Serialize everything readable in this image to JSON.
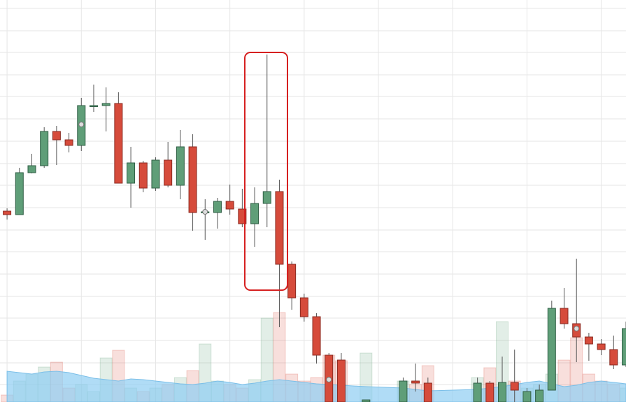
{
  "chart_data": {
    "type": "candlestick",
    "x": [
      0,
      1,
      2,
      3,
      4,
      5,
      6,
      7,
      8,
      9,
      10,
      11,
      12,
      13,
      14,
      15,
      16,
      17,
      18,
      19,
      20,
      21,
      22,
      23,
      24,
      25,
      26,
      27,
      29,
      32,
      33,
      34,
      38,
      39,
      40,
      41,
      42,
      43,
      44,
      45,
      46,
      47,
      48,
      49,
      50
    ],
    "open": [
      273,
      268,
      328,
      338,
      387,
      375,
      367,
      423,
      424,
      427,
      313,
      342,
      306,
      346,
      310,
      365,
      272,
      271,
      287,
      276,
      255,
      284,
      301,
      197,
      149,
      122,
      67,
      60,
      0,
      0,
      30,
      27,
      0,
      27,
      0,
      28,
      0,
      0,
      17,
      134,
      112,
      93,
      83,
      75,
      53
    ],
    "high": [
      277,
      335,
      355,
      393,
      395,
      385,
      435,
      454,
      450,
      443,
      365,
      345,
      350,
      372,
      389,
      383,
      290,
      292,
      311,
      305,
      307,
      497,
      318,
      201,
      155,
      127,
      70,
      70,
      3,
      35,
      55,
      35,
      35,
      30,
      65,
      75,
      20,
      25,
      145,
      163,
      205,
      99,
      90,
      95,
      115
    ],
    "low": [
      261,
      268,
      327,
      335,
      339,
      357,
      359,
      415,
      387,
      313,
      278,
      300,
      302,
      307,
      290,
      245,
      232,
      248,
      268,
      250,
      222,
      250,
      107,
      132,
      115,
      55,
      0,
      0,
      0,
      0,
      15,
      0,
      0,
      0,
      0,
      0,
      0,
      0,
      17,
      105,
      57,
      59,
      67,
      47,
      50
    ],
    "close": [
      268,
      328,
      338,
      387,
      375,
      367,
      424,
      424,
      427,
      313,
      342,
      306,
      346,
      310,
      365,
      271,
      272,
      287,
      276,
      255,
      284,
      301,
      197,
      149,
      122,
      67,
      0,
      0,
      3,
      30,
      27,
      0,
      27,
      0,
      28,
      17,
      15,
      17,
      134,
      112,
      93,
      83,
      75,
      53,
      105
    ],
    "volume": [
      10,
      30,
      40,
      50,
      57,
      20,
      25,
      15,
      63,
      74,
      20,
      15,
      20,
      25,
      35,
      45,
      83,
      30,
      25,
      20,
      32,
      120,
      128,
      40,
      30,
      35,
      67,
      59,
      70,
      30,
      25,
      52,
      35,
      49,
      115,
      30,
      20,
      25,
      40,
      60,
      92,
      40,
      30,
      25,
      20
    ],
    "area": [
      44,
      42,
      40,
      43,
      44,
      42,
      38,
      34,
      32,
      30,
      33,
      32,
      30,
      28,
      26,
      25,
      27,
      30,
      28,
      25,
      27,
      30,
      32,
      30,
      28,
      26,
      25,
      24,
      22,
      20,
      18,
      16,
      18,
      20,
      22,
      25,
      28,
      30,
      26,
      22,
      24,
      28,
      30,
      28,
      26
    ],
    "markers": [
      {
        "x": 6,
        "y": 397
      },
      {
        "x": 16,
        "y": 272
      },
      {
        "x": 26,
        "y": 32
      },
      {
        "x": 46,
        "y": 105
      }
    ],
    "up_color": "#5f9e78",
    "down_color": "#d64b3b",
    "area_color": "#8fcdf2",
    "xlim": [
      -0.57,
      50
    ],
    "ylim": [
      0,
      575
    ],
    "xticks": [
      0,
      6,
      12,
      18,
      24,
      30,
      36,
      42,
      48
    ],
    "yticks": [
      25,
      56,
      88,
      120,
      151,
      183,
      215,
      246,
      278,
      310,
      341,
      373,
      405,
      437,
      468,
      500,
      531,
      563
    ],
    "grid": true
  }
}
